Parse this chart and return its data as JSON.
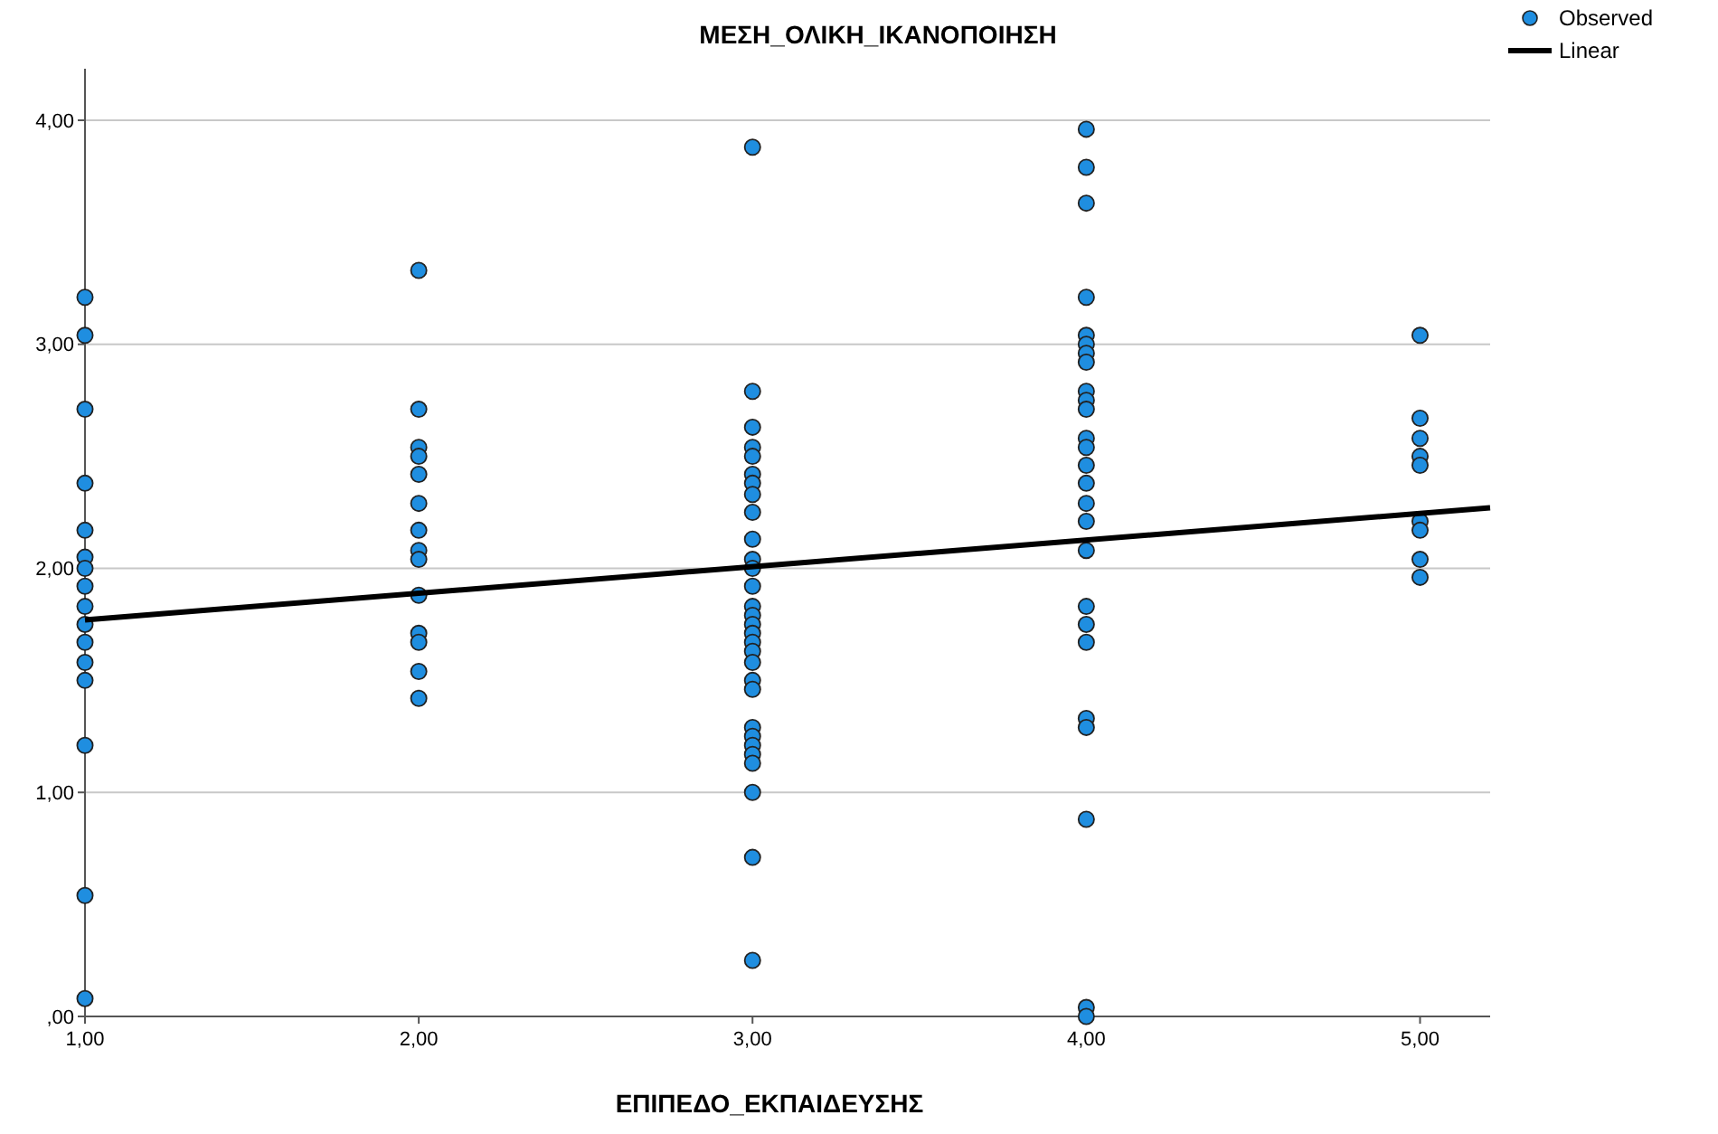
{
  "chart_data": {
    "type": "scatter",
    "title": "ΜΕΣΗ_ΟΛΙΚΗ_ΙΚΑΝΟΠΟΙΗΣΗ",
    "xlabel": "ΕΠΙΠΕΔΟ_ΕΚΠΑΙΔΕΥΣΗΣ",
    "xlim": [
      1,
      5.21
    ],
    "ylim": [
      0,
      4.23
    ],
    "xticks": [
      {
        "value": 1,
        "label": "1,00"
      },
      {
        "value": 2,
        "label": "2,00"
      },
      {
        "value": 3,
        "label": "3,00"
      },
      {
        "value": 4,
        "label": "4,00"
      },
      {
        "value": 5,
        "label": "5,00"
      }
    ],
    "yticks": [
      {
        "value": 0,
        "label": ",00"
      },
      {
        "value": 1,
        "label": "1,00"
      },
      {
        "value": 2,
        "label": "2,00"
      },
      {
        "value": 3,
        "label": "3,00"
      },
      {
        "value": 4,
        "label": "4,00"
      }
    ],
    "grid": "y",
    "legend": "top right",
    "series": [
      {
        "name": "Observed",
        "marker": "circle",
        "color": "#1f8ee0",
        "x": [
          1,
          1,
          1,
          1,
          1,
          1,
          1,
          1,
          1,
          1,
          1,
          1,
          1,
          1,
          1,
          1,
          2,
          2,
          2,
          2,
          2,
          2,
          2,
          2,
          2,
          2,
          2,
          2,
          2,
          2,
          3,
          3,
          3,
          3,
          3,
          3,
          3,
          3,
          3,
          3,
          3,
          3,
          3,
          3,
          3,
          3,
          3,
          3,
          3,
          3,
          3,
          3,
          3,
          3,
          3,
          3,
          3,
          3,
          3,
          3,
          4,
          4,
          4,
          4,
          4,
          4,
          4,
          4,
          4,
          4,
          4,
          4,
          4,
          4,
          4,
          4,
          4,
          4,
          4,
          4,
          4,
          4,
          4,
          4,
          4,
          4,
          5,
          5,
          5,
          5,
          5,
          5,
          5,
          5,
          5
        ],
        "values": [
          3.21,
          3.04,
          2.71,
          2.38,
          2.17,
          2.05,
          2.0,
          1.92,
          1.83,
          1.75,
          1.67,
          1.58,
          1.5,
          1.21,
          0.54,
          0.08,
          3.33,
          2.71,
          2.54,
          2.5,
          2.42,
          2.29,
          2.17,
          2.08,
          2.04,
          1.88,
          1.71,
          1.67,
          1.54,
          1.42,
          3.88,
          2.79,
          2.63,
          2.54,
          2.5,
          2.42,
          2.38,
          2.33,
          2.25,
          2.13,
          2.04,
          2.0,
          1.92,
          1.83,
          1.79,
          1.75,
          1.71,
          1.67,
          1.63,
          1.58,
          1.5,
          1.46,
          1.29,
          1.25,
          1.21,
          1.17,
          1.13,
          1.0,
          0.71,
          0.25,
          3.96,
          3.79,
          3.63,
          3.21,
          3.04,
          3.0,
          2.96,
          2.92,
          2.79,
          2.75,
          2.71,
          2.58,
          2.54,
          2.46,
          2.38,
          2.29,
          2.21,
          2.08,
          1.83,
          1.75,
          1.67,
          1.33,
          1.29,
          0.88,
          0.04,
          0.0,
          3.04,
          2.67,
          2.58,
          2.5,
          2.46,
          2.21,
          2.17,
          2.04,
          1.96
        ]
      },
      {
        "name": "Linear",
        "type": "line",
        "color": "#000000",
        "x": [
          1,
          5.21
        ],
        "values": [
          1.77,
          2.27
        ]
      }
    ]
  }
}
